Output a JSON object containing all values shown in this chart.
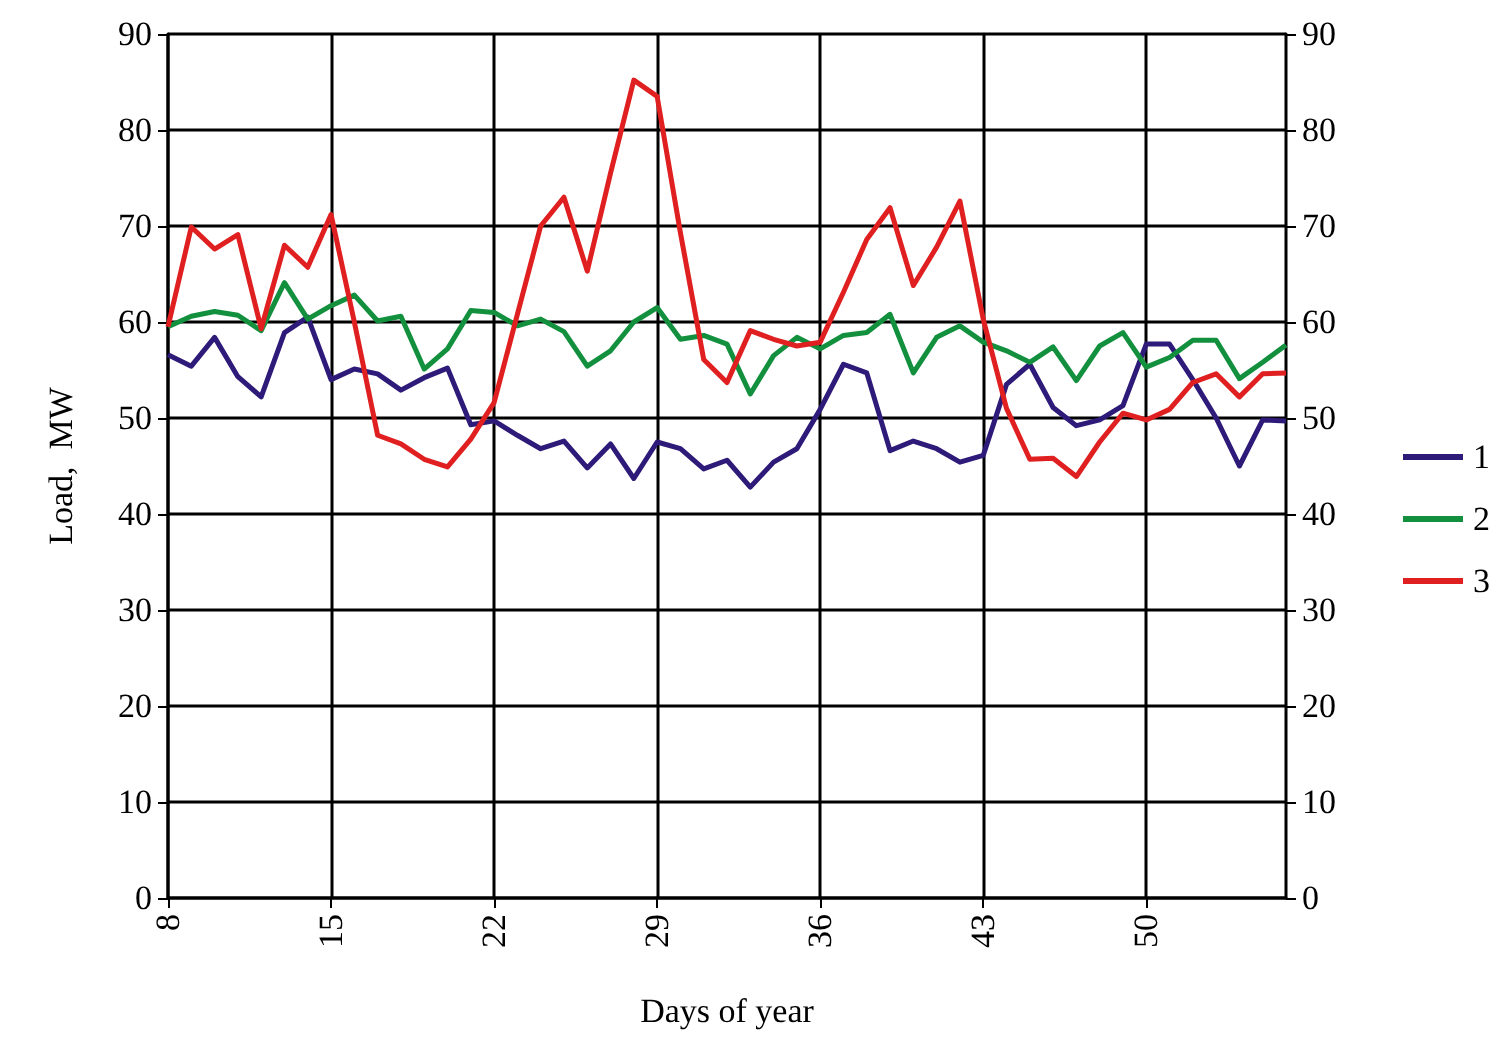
{
  "chart_data": {
    "type": "line",
    "xlabel": "Days of year",
    "ylabel": "Load,  MW",
    "x": [
      8,
      9,
      10,
      11,
      12,
      13,
      14,
      15,
      16,
      17,
      18,
      19,
      20,
      21,
      22,
      23,
      24,
      25,
      26,
      27,
      28,
      29,
      30,
      31,
      32,
      33,
      34,
      35,
      36,
      37,
      38,
      39,
      40,
      41,
      42,
      43,
      44,
      45,
      46,
      47,
      48,
      49,
      50,
      51,
      52,
      53,
      54,
      55,
      56
    ],
    "series": [
      {
        "name": "1",
        "color": "#2e1a78",
        "values": [
          56.6,
          55.4,
          58.4,
          54.3,
          52.2,
          58.9,
          60.5,
          54,
          55.1,
          54.6,
          52.9,
          54.2,
          55.2,
          49.3,
          49.7,
          48.2,
          46.8,
          47.6,
          44.8,
          47.3,
          43.7,
          47.5,
          46.8,
          44.7,
          45.6,
          42.8,
          45.4,
          46.8,
          50.9,
          55.6,
          54.7,
          46.6,
          47.6,
          46.8,
          45.4,
          46.1,
          53.5,
          55.6,
          51.1,
          49.2,
          49.8,
          51.3,
          57.7,
          57.7,
          54,
          50,
          45,
          49.8,
          49.7
        ]
      },
      {
        "name": "2",
        "color": "#12903e",
        "values": [
          59.5,
          60.6,
          61.1,
          60.7,
          59.1,
          64.1,
          60.3,
          61.7,
          62.8,
          60.1,
          60.6,
          55.1,
          57.2,
          61.2,
          61,
          59.6,
          60.3,
          59,
          55.4,
          57,
          60,
          61.5,
          58.2,
          58.6,
          57.7,
          52.5,
          56.5,
          58.4,
          57.2,
          58.6,
          58.9,
          60.8,
          54.7,
          58.4,
          59.6,
          57.9,
          57,
          55.8,
          57.4,
          53.9,
          57.5,
          58.9,
          55.3,
          56.3,
          58.1,
          58.1,
          54.1,
          55.8,
          57.6
        ]
      },
      {
        "name": "3",
        "color": "#e02020",
        "values": [
          59.5,
          69.9,
          67.6,
          69.1,
          59.3,
          68,
          65.7,
          71.2,
          60,
          48.2,
          47.3,
          45.7,
          44.9,
          47.8,
          51.6,
          60.8,
          70,
          73,
          65.3,
          75.5,
          85.2,
          83.5,
          69.3,
          56.1,
          53.7,
          59.1,
          58.2,
          57.5,
          57.9,
          63.1,
          68.6,
          71.9,
          63.8,
          67.8,
          72.6,
          60.3,
          51,
          45.7,
          45.8,
          43.9,
          47.5,
          50.5,
          49.8,
          50.9,
          53.7,
          54.6,
          52.2,
          54.6,
          54.7
        ]
      }
    ],
    "xlim": [
      8,
      56
    ],
    "xticks": [
      8,
      15,
      22,
      29,
      36,
      43,
      50
    ],
    "ylim": [
      0,
      90
    ],
    "yticks": [
      0,
      10,
      20,
      30,
      40,
      50,
      60,
      70,
      80,
      90
    ],
    "y2lim": [
      0,
      90
    ],
    "y2ticks": [
      0,
      10,
      20,
      30,
      40,
      50,
      60,
      70,
      80,
      90
    ],
    "grid": true,
    "legend": "right",
    "marker": "none",
    "line_style": "solid"
  }
}
